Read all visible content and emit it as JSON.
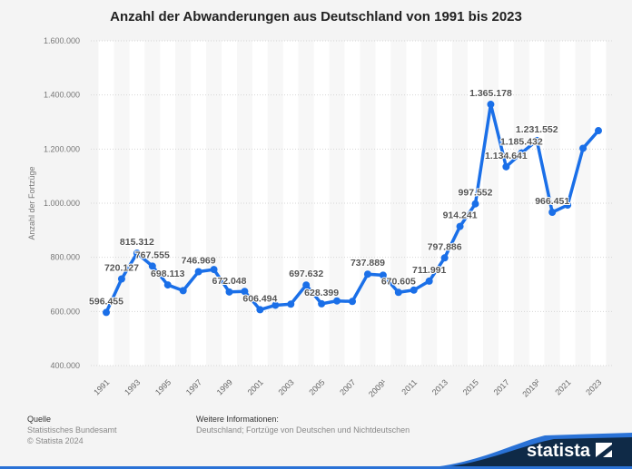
{
  "chart_data": {
    "type": "line",
    "title": "Anzahl der Abwanderungen aus Deutschland von 1991 bis 2023",
    "xlabel": "",
    "ylabel": "Anzahl der Fortzüge",
    "ylim": [
      400000,
      1600000
    ],
    "yticks": [
      "400.000",
      "600.000",
      "800.000",
      "1.000.000",
      "1.200.000",
      "1.400.000",
      "1.600.000"
    ],
    "ytick_values": [
      400000,
      600000,
      800000,
      1000000,
      1200000,
      1400000,
      1600000
    ],
    "xtick_labels": [
      "1991",
      "1993",
      "1995",
      "1997",
      "1999",
      "2001",
      "2003",
      "2005",
      "2007",
      "2009¹",
      "2011",
      "2013",
      "2015",
      "2017",
      "2019²",
      "2021",
      "2023"
    ],
    "grid": true,
    "color": "#1a6fe8",
    "x": [
      1991,
      1992,
      1993,
      1994,
      1995,
      1996,
      1997,
      1998,
      1999,
      2000,
      2001,
      2002,
      2003,
      2004,
      2005,
      2006,
      2007,
      2008,
      2009,
      2010,
      2011,
      2012,
      2013,
      2014,
      2015,
      2016,
      2017,
      2018,
      2019,
      2020,
      2021,
      2022,
      2023
    ],
    "values": [
      596455,
      720127,
      815312,
      767555,
      698113,
      677000,
      746969,
      755000,
      672048,
      674000,
      606494,
      623000,
      627000,
      697632,
      628399,
      639000,
      637000,
      737889,
      734000,
      670605,
      679000,
      711991,
      797886,
      914241,
      997552,
      1365178,
      1134641,
      1185432,
      1231552,
      966451,
      993000,
      1203000,
      1268000
    ],
    "data_labels": {
      "1991": "596.455",
      "1992": "720.127",
      "1993": "815.312",
      "1994": "767.555",
      "1995": "698.113",
      "1997": "746.969",
      "1999": "672.048",
      "2001": "606.494",
      "2004": "697.632",
      "2005": "628.399",
      "2008": "737.889",
      "2010": "670.605",
      "2012": "711.991",
      "2013": "797.886",
      "2014": "914.241",
      "2015": "997.552",
      "2016": "1.365.178",
      "2017": "1.134.641",
      "2018": "1.185.432",
      "2019": "1.231.552",
      "2020": "966.451"
    }
  },
  "footer": {
    "source_heading": "Quelle",
    "source": "Statistisches Bundesamt",
    "copyright": "© Statista 2024",
    "info_heading": "Weitere Informationen:",
    "info": "Deutschland; Fortzüge von Deutschen und Nichtdeutschen",
    "logo": "statista"
  }
}
